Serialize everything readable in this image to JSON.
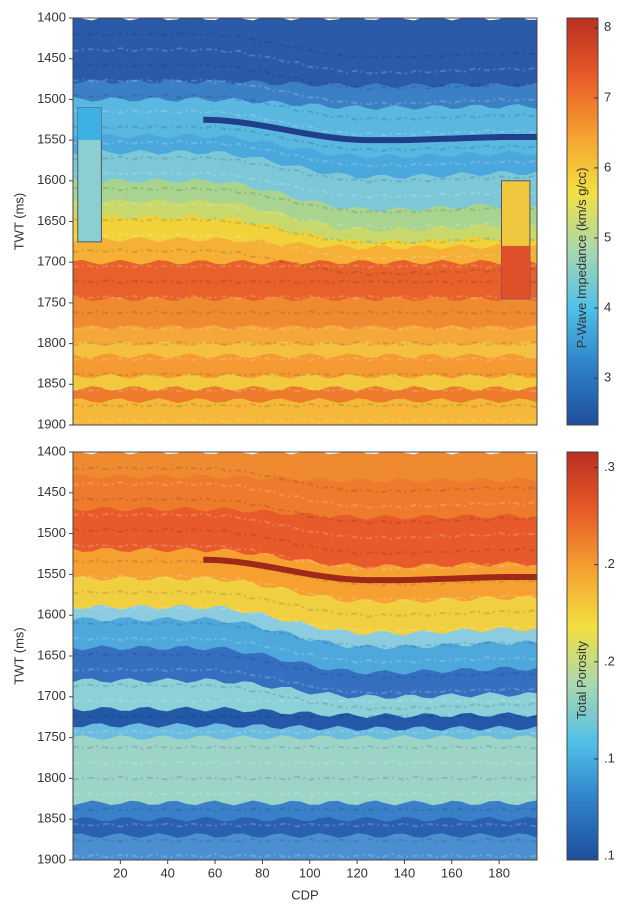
{
  "chart_data": [
    {
      "type": "heatmap",
      "ylabel": "TWT (ms)",
      "ylim": [
        1400,
        1900
      ],
      "yticks": [
        1400,
        1450,
        1500,
        1550,
        1600,
        1650,
        1700,
        1750,
        1800,
        1850,
        1900
      ],
      "xlim": [
        0,
        196
      ],
      "colorbar": {
        "label": "P-Wave Impedance (km/s g/cc)",
        "lim": [
          2.33,
          8.14
        ],
        "ticks": [
          3,
          4,
          5,
          6,
          7,
          8
        ],
        "colormap": [
          "#1f4e9c",
          "#2f80c8",
          "#4fc0e8",
          "#a8d8b0",
          "#f2e040",
          "#f5a030",
          "#e85a28",
          "#b83020"
        ]
      }
    },
    {
      "type": "heatmap",
      "ylabel": "TWT (ms)",
      "xlabel": "CDP",
      "ylim": [
        1400,
        1900
      ],
      "yticks": [
        1400,
        1450,
        1500,
        1550,
        1600,
        1650,
        1700,
        1750,
        1800,
        1850,
        1900
      ],
      "xlim": [
        0,
        196
      ],
      "xticks": [
        20,
        40,
        60,
        80,
        100,
        120,
        140,
        160,
        180
      ],
      "colorbar": {
        "label": "Total Porosity",
        "lim": [
          0.098,
          0.308
        ],
        "ticks": [
          {
            "value": 0.3,
            "label": ".3"
          },
          {
            "value": 0.25,
            "label": ".2"
          },
          {
            "value": 0.2,
            "label": ".2"
          },
          {
            "value": 0.15,
            "label": ".1"
          },
          {
            "value": 0.1,
            "label": ".1"
          }
        ],
        "colormap": [
          "#1f4e9c",
          "#2f80c8",
          "#4fc0e8",
          "#a8d8b0",
          "#f2e040",
          "#f5a030",
          "#e85a28",
          "#b83020"
        ]
      }
    }
  ]
}
